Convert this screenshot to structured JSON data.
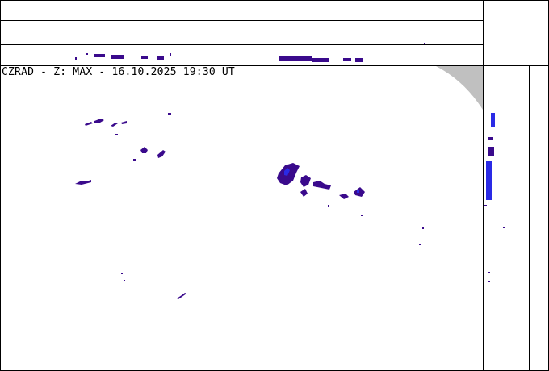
{
  "map": {
    "title": "CZRAD - Z: MAX - 16.10.2025 19:30 UT",
    "echo_colors": {
      "weak": "#3a0a8c",
      "moderate": "#2a2ae6",
      "strong": "#1060ff"
    },
    "mask_color": "#c0c0c0"
  }
}
